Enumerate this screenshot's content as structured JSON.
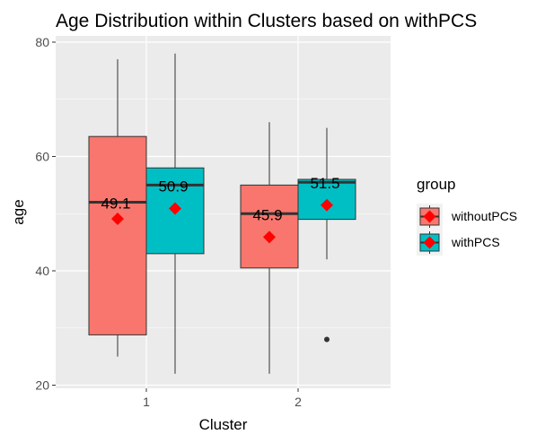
{
  "chart_data": {
    "type": "boxplot",
    "title": "Age Distribution within Clusters based on withPCS",
    "xlabel": "Cluster",
    "ylabel": "age",
    "categories": [
      "1",
      "2"
    ],
    "yticks": [
      20,
      40,
      60,
      80
    ],
    "ylim": [
      20,
      80
    ],
    "grid": true,
    "legend": {
      "title": "group",
      "position": "right"
    },
    "series": [
      {
        "name": "withoutPCS",
        "color": "#F8766D",
        "boxes": [
          {
            "cluster": "1",
            "min": 25,
            "q1": 28.8,
            "median": 52,
            "q3": 63.5,
            "max": 77,
            "mean": 49.1,
            "mean_label": "49.1",
            "outliers": []
          },
          {
            "cluster": "2",
            "min": 22,
            "q1": 40.5,
            "median": 50,
            "q3": 55,
            "max": 66,
            "mean": 45.9,
            "mean_label": "45.9",
            "outliers": []
          }
        ]
      },
      {
        "name": "withPCS",
        "color": "#00BFC4",
        "boxes": [
          {
            "cluster": "1",
            "min": 22,
            "q1": 43,
            "median": 55,
            "q3": 58,
            "max": 78,
            "mean": 50.9,
            "mean_label": "50.9",
            "outliers": []
          },
          {
            "cluster": "2",
            "min": 42,
            "q1": 49,
            "median": 55.5,
            "q3": 56,
            "max": 65,
            "mean": 51.5,
            "mean_label": "51.5",
            "outliers": [
              28
            ]
          }
        ]
      }
    ],
    "mean_marker_color": "#FF0000"
  }
}
